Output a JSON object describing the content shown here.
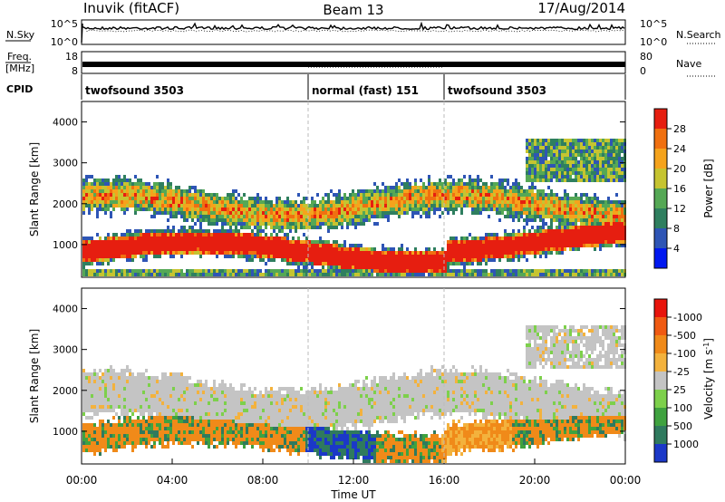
{
  "header": {
    "station": "Inuvik (fitACF)",
    "beam": "Beam 13",
    "date": "17/Aug/2014"
  },
  "top_panels": {
    "nsky_label": "N.Sky",
    "nsky_ticks": [
      "10^5",
      "10^0"
    ],
    "nsearch_ticks": [
      "10^5",
      "10^0"
    ],
    "nsearch_label": "N.Search",
    "freq_label": "Freq.",
    "freq_unit": "[MHz]",
    "freq_ticks": [
      "18",
      "8"
    ],
    "nave_ticks": [
      "80",
      "0"
    ],
    "nave_label": "Nave",
    "cpid_label": "CPID",
    "cpid_segments": [
      {
        "label": "twofsound 3503",
        "start_h": 0,
        "end_h": 10
      },
      {
        "label": "normal (fast) 151",
        "start_h": 10,
        "end_h": 16
      },
      {
        "label": "twofsound 3503",
        "start_h": 16,
        "end_h": 24
      }
    ]
  },
  "chart_data": [
    {
      "type": "heatmap",
      "ylabel": "Slant Range [km]",
      "xlim": [
        0,
        24
      ],
      "ylim": [
        200,
        4500
      ],
      "yticks": [
        "1000",
        "2000",
        "3000",
        "4000"
      ],
      "colorbar": {
        "label": "Power [dB]",
        "ticks": [
          "4",
          "8",
          "12",
          "16",
          "20",
          "24",
          "28"
        ],
        "colors": [
          "#0018f0",
          "#2e55b5",
          "#2f7f5f",
          "#55a855",
          "#c6c430",
          "#f5a31c",
          "#f07010",
          "#e61e10"
        ]
      }
    },
    {
      "type": "heatmap",
      "ylabel": "Slant Range [km]",
      "xlabel": "Time UT",
      "xlim": [
        0,
        24
      ],
      "ylim": [
        200,
        4500
      ],
      "xticks": [
        "00:00",
        "04:00",
        "08:00",
        "12:00",
        "16:00",
        "20:00",
        "00:00"
      ],
      "yticks": [
        "1000",
        "2000",
        "3000",
        "4000"
      ],
      "colorbar": {
        "label": "Velocity [m s",
        "label_sup": "-1",
        "label_end": "]",
        "ticks": [
          "1000",
          "500",
          "100",
          "25",
          "-25",
          "-100",
          "-500",
          "-1000"
        ],
        "colors": [
          "#1b38c8",
          "#2f7a5e",
          "#3fa23f",
          "#7dd04b",
          "#c4c4c4",
          "#f3b23d",
          "#f08a19",
          "#f05a12",
          "#e8140c"
        ]
      }
    }
  ]
}
